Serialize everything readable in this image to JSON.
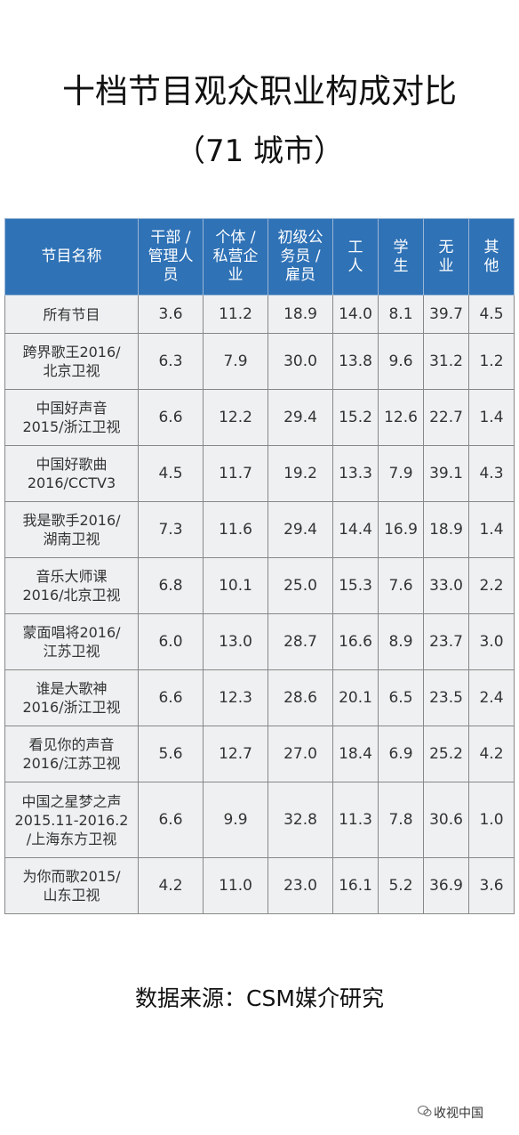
{
  "header": {
    "title": "十档节目观众职业构成对比",
    "subtitle": "（71 城市）"
  },
  "table": {
    "columns": [
      "节目名称",
      "干部 /\n管理人\n员",
      "个体 /\n私营企\n业",
      "初级公\n务员 /\n雇员",
      "工\n人",
      "学\n生",
      "无\n业",
      "其\n他"
    ],
    "rows": [
      [
        "所有节目",
        "3.6",
        "11.2",
        "18.9",
        "14.0",
        "8.1",
        "39.7",
        "4.5"
      ],
      [
        "跨界歌王2016/\n北京卫视",
        "6.3",
        "7.9",
        "30.0",
        "13.8",
        "9.6",
        "31.2",
        "1.2"
      ],
      [
        "中国好声音\n2015/浙江卫视",
        "6.6",
        "12.2",
        "29.4",
        "15.2",
        "12.6",
        "22.7",
        "1.4"
      ],
      [
        "中国好歌曲\n2016/CCTV3",
        "4.5",
        "11.7",
        "19.2",
        "13.3",
        "7.9",
        "39.1",
        "4.3"
      ],
      [
        "我是歌手2016/\n湖南卫视",
        "7.3",
        "11.6",
        "29.4",
        "14.4",
        "16.9",
        "18.9",
        "1.4"
      ],
      [
        "音乐大师课\n2016/北京卫视",
        "6.8",
        "10.1",
        "25.0",
        "15.3",
        "7.6",
        "33.0",
        "2.2"
      ],
      [
        "蒙面唱将2016/\n江苏卫视",
        "6.0",
        "13.0",
        "28.7",
        "16.6",
        "8.9",
        "23.7",
        "3.0"
      ],
      [
        "谁是大歌神\n2016/浙江卫视",
        "6.6",
        "12.3",
        "28.6",
        "20.1",
        "6.5",
        "23.5",
        "2.4"
      ],
      [
        "看见你的声音\n2016/江苏卫视",
        "5.6",
        "12.7",
        "27.0",
        "18.4",
        "6.9",
        "25.2",
        "4.2"
      ],
      [
        "中国之星梦之声\n2015.11-2016.2\n/上海东方卫视",
        "6.6",
        "9.9",
        "32.8",
        "11.3",
        "7.8",
        "30.6",
        "1.0"
      ],
      [
        "为你而歌2015/\n山东卫视",
        "4.2",
        "11.0",
        "23.0",
        "16.1",
        "5.2",
        "36.9",
        "3.6"
      ]
    ]
  },
  "footer": {
    "source": "数据来源：CSM媒介研究",
    "watermark": "收视中国"
  }
}
